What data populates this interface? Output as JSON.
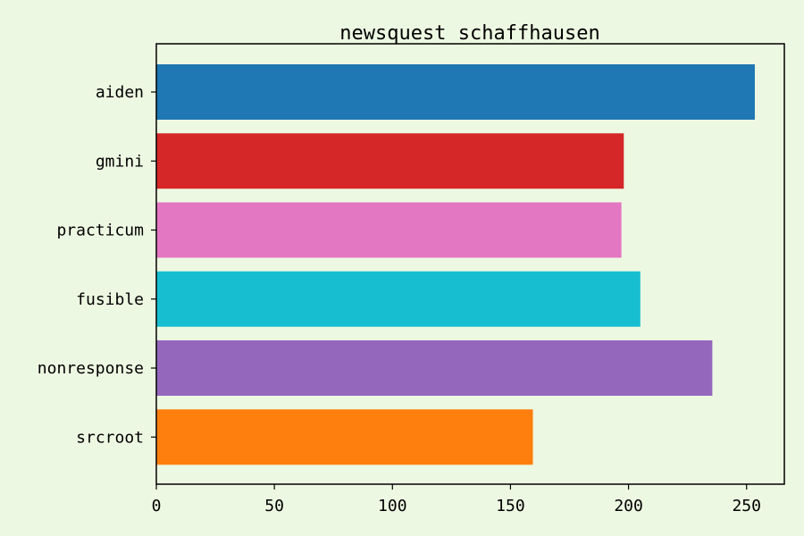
{
  "chart_data": {
    "type": "bar",
    "orientation": "horizontal",
    "title": "newsquest schaffhausen",
    "xlabel": "",
    "ylabel": "",
    "categories": [
      "aiden",
      "gmini",
      "practicum",
      "fusible",
      "nonresponse",
      "srcroot"
    ],
    "values": [
      253.5,
      198,
      197,
      205,
      235.5,
      159.5
    ],
    "colors": [
      "#1f77b4",
      "#d62728",
      "#e377c2",
      "#17becf",
      "#9467bd",
      "#ff7f0e"
    ],
    "xlim": [
      0,
      266
    ],
    "xticks": [
      0,
      50,
      100,
      150,
      200,
      250
    ],
    "grid": false,
    "background": "#edf8e2"
  }
}
